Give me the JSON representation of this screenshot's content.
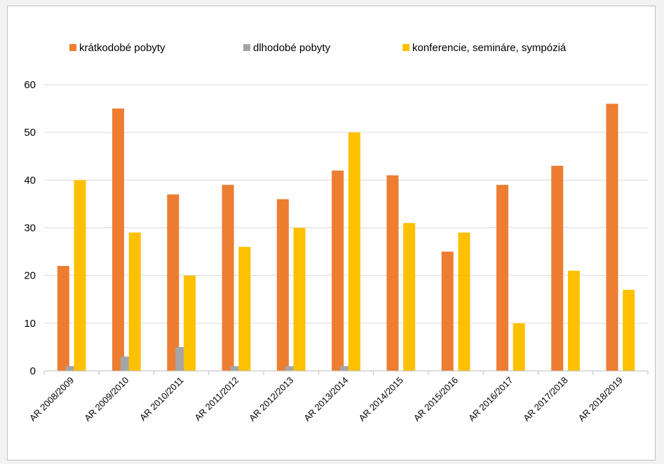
{
  "chart_data": {
    "type": "bar",
    "categories": [
      "AR 2008/2009",
      "AR 2009/2010",
      "AR 2010/2011",
      "AR 2011/2012",
      "AR 2012/2013",
      "AR 2013/2014",
      "AR 2014/2015",
      "AR 2015/2016",
      "AR 2016/2017",
      "AR 2017/2018",
      "AR 2018/2019"
    ],
    "series": [
      {
        "name": "krátkodobé pobyty",
        "color": "#ED7D31",
        "values": [
          22,
          55,
          37,
          39,
          36,
          42,
          41,
          25,
          39,
          43,
          56
        ]
      },
      {
        "name": "dlhodobé pobyty",
        "color": "#A5A5A5",
        "values": [
          1,
          3,
          5,
          1,
          1,
          1,
          0,
          0,
          0,
          0,
          0
        ]
      },
      {
        "name": "konferencie, semináre, sympóziá",
        "color": "#FFC000",
        "values": [
          40,
          29,
          20,
          26,
          30,
          50,
          31,
          29,
          10,
          21,
          17
        ]
      }
    ],
    "ylim": [
      0,
      60
    ],
    "yticks": [
      0,
      10,
      20,
      30,
      40,
      50,
      60
    ],
    "grid": true,
    "legend_position": "top",
    "title": "",
    "xlabel": "",
    "ylabel": ""
  }
}
